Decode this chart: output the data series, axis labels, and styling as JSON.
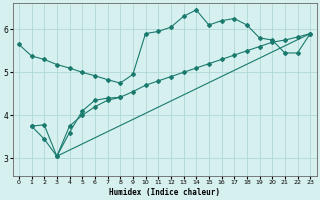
{
  "xlabel": "Humidex (Indice chaleur)",
  "background_color": "#d6f0ef",
  "grid_color": "#b0d8d4",
  "line_color": "#1a7a6e",
  "xlim": [
    -0.5,
    23.5
  ],
  "ylim": [
    2.6,
    6.6
  ],
  "yticks": [
    3,
    4,
    5,
    6
  ],
  "xticks": [
    0,
    1,
    2,
    3,
    4,
    5,
    6,
    7,
    8,
    9,
    10,
    11,
    12,
    13,
    14,
    15,
    16,
    17,
    18,
    19,
    20,
    21,
    22,
    23
  ],
  "line1_x": [
    0,
    1,
    2,
    3,
    4,
    5,
    6,
    7,
    8,
    9,
    10,
    11,
    12,
    13,
    14,
    15,
    16,
    17,
    18,
    19,
    20,
    21,
    22,
    23
  ],
  "line1_y": [
    5.65,
    5.38,
    5.3,
    5.18,
    5.1,
    5.0,
    4.92,
    4.83,
    4.75,
    4.95,
    5.9,
    5.95,
    6.05,
    6.3,
    6.45,
    6.1,
    6.2,
    6.25,
    6.1,
    5.8,
    5.75,
    5.45,
    5.45,
    5.9
  ],
  "line2_x": [
    1,
    2,
    3,
    4,
    5,
    6,
    7,
    8
  ],
  "line2_y": [
    3.75,
    3.45,
    3.05,
    3.6,
    4.1,
    4.35,
    4.4,
    4.42
  ],
  "line3_x": [
    1,
    2,
    3,
    4,
    5,
    6,
    7,
    8,
    9,
    10,
    11,
    12,
    13,
    14,
    15,
    16,
    17,
    18,
    19,
    20,
    21,
    22,
    23
  ],
  "line3_y": [
    3.75,
    3.78,
    3.05,
    3.75,
    4.0,
    4.2,
    4.35,
    4.42,
    4.55,
    4.7,
    4.8,
    4.9,
    5.0,
    5.1,
    5.2,
    5.3,
    5.4,
    5.5,
    5.6,
    5.7,
    5.75,
    5.82,
    5.9
  ],
  "line4_x": [
    3,
    23
  ],
  "line4_y": [
    3.05,
    5.9
  ]
}
